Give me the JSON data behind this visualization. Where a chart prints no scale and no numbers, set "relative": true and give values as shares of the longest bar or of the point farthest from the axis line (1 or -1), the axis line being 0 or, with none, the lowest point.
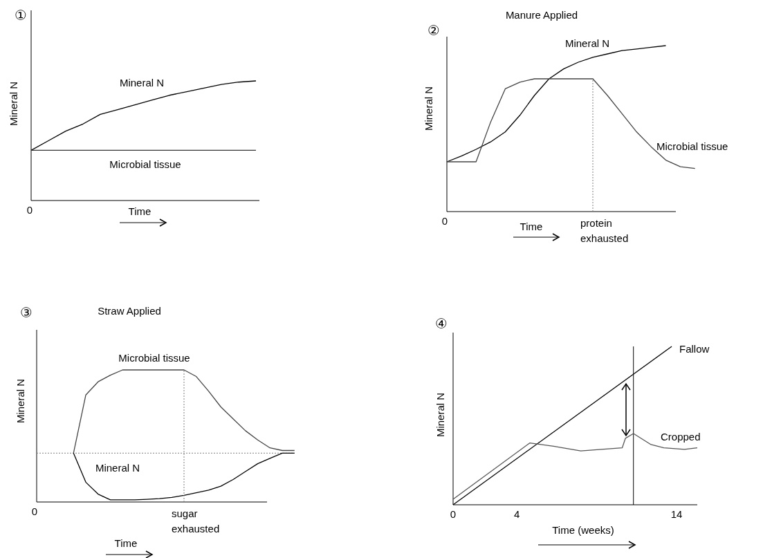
{
  "chart_data": [
    {
      "type": "line",
      "ylabel": "Mineral N",
      "xlabel": "Time",
      "relative": true,
      "tick_labels": false,
      "annotations": [
        "①",
        "0"
      ],
      "categories": [
        null,
        null,
        null,
        null,
        null,
        null,
        null,
        null,
        null,
        null,
        null,
        null,
        null,
        null
      ],
      "series": [
        {
          "name": "Mineral N",
          "color": "#000000",
          "values": [
            0.42,
            0.5,
            0.58,
            0.64,
            0.72,
            0.76,
            0.8,
            0.84,
            0.88,
            0.91,
            0.94,
            0.97,
            0.99,
            1
          ]
        },
        {
          "name": "Microbial tissue",
          "color": "#333333",
          "values": [
            0.42,
            0.42,
            0.42,
            0.42,
            0.42,
            0.42,
            0.42,
            0.42,
            0.42,
            0.42,
            0.42,
            0.42,
            0.42,
            0.42
          ]
        }
      ]
    },
    {
      "type": "line",
      "title": "Manure Applied",
      "ylabel": "Mineral N",
      "xlabel": "Time",
      "relative": true,
      "tick_labels": false,
      "annotations": [
        "②",
        "0",
        "protein exhausted"
      ],
      "categories": [
        null,
        null,
        null,
        null,
        null,
        null,
        null,
        null,
        null,
        null,
        null,
        null,
        null,
        null,
        null,
        null,
        null,
        null
      ],
      "series": [
        {
          "name": "Mineral N",
          "color": "#000000",
          "values": [
            0.3,
            0.335,
            0.375,
            0.42,
            0.48,
            0.58,
            0.7,
            0.8,
            0.86,
            0.9,
            0.93,
            0.95,
            0.97,
            0.98,
            0.99,
            1,
            null,
            null
          ]
        },
        {
          "name": "Microbial tissue",
          "color": "#444444",
          "values": [
            0.3,
            0.3,
            0.3,
            0.54,
            0.74,
            0.78,
            0.8,
            0.8,
            0.8,
            0.8,
            0.8,
            0.7,
            0.59,
            0.48,
            0.39,
            0.31,
            0.27,
            0.26
          ]
        }
      ]
    },
    {
      "type": "line",
      "title": "Straw Applied",
      "ylabel": "Mineral N",
      "xlabel": "Time",
      "relative": true,
      "tick_labels": false,
      "annotations": [
        "③",
        "0",
        "sugar exhausted"
      ],
      "categories": [
        null,
        null,
        null,
        null,
        null,
        null,
        null,
        null,
        null,
        null,
        null,
        null,
        null,
        null,
        null,
        null,
        null,
        null,
        null,
        null,
        null,
        null
      ],
      "ref_lines": [
        {
          "axis": "y",
          "value": 0.37,
          "color": "#808080",
          "line_style": "dotted"
        }
      ],
      "series": [
        {
          "name": "Microbial tissue",
          "color": "#444444",
          "values": [
            null,
            null,
            null,
            0.37,
            0.81,
            0.91,
            0.96,
            1,
            1,
            1,
            1,
            1,
            1,
            0.95,
            0.84,
            0.72,
            0.63,
            0.54,
            0.47,
            0.41,
            0.39,
            0.39
          ]
        },
        {
          "name": "Mineral N",
          "color": "#000000",
          "values": [
            null,
            null,
            null,
            0.37,
            0.15,
            0.06,
            0.016,
            0.016,
            0.016,
            0.02,
            0.025,
            0.035,
            0.05,
            0.07,
            0.09,
            0.12,
            0.17,
            0.23,
            0.29,
            0.33,
            0.37,
            0.37
          ]
        }
      ]
    },
    {
      "type": "line",
      "ylabel": "Mineral N",
      "xlabel": "Time (weeks)",
      "relative": true,
      "tick_labels": "x",
      "xlim": [
        0,
        15.3
      ],
      "xticks": [
        0,
        4,
        14
      ],
      "annotations": [
        "④"
      ],
      "ref_lines": [
        {
          "axis": "x",
          "value": 11.3,
          "color": "#000000",
          "line_style": "solid"
        }
      ],
      "series": [
        {
          "name": "Fallow",
          "color": "#000000",
          "x": [
            0,
            13.7
          ],
          "values": [
            0,
            1
          ]
        },
        {
          "name": "Cropped",
          "color": "#555555",
          "x": [
            0,
            4.8,
            6.3,
            8,
            10.6,
            10.8,
            11.3,
            12.4,
            13.2,
            14.5,
            15.3
          ],
          "values": [
            0.035,
            0.39,
            0.37,
            0.34,
            0.36,
            0.42,
            0.45,
            0.38,
            0.36,
            0.35,
            0.36
          ]
        }
      ]
    }
  ]
}
